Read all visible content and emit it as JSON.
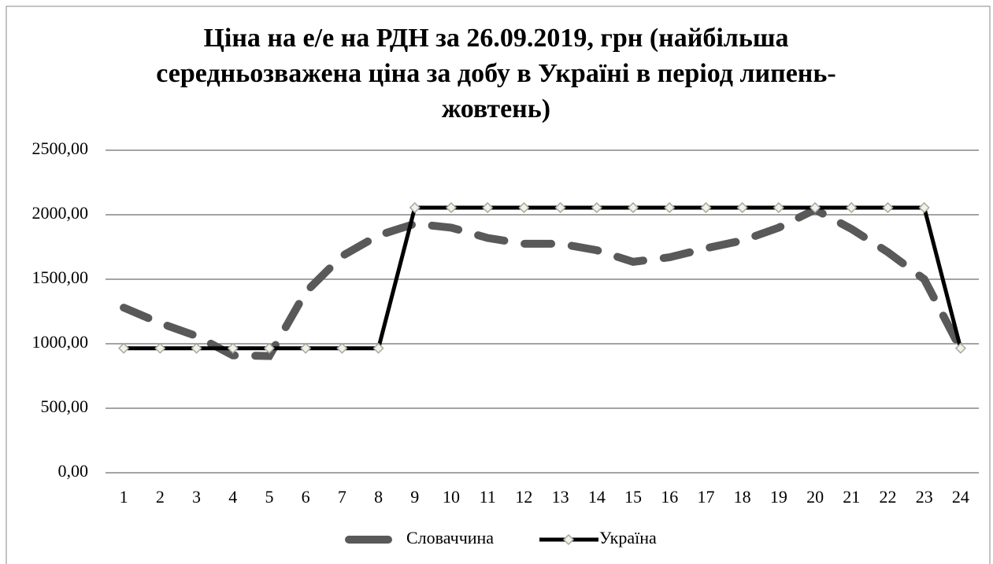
{
  "chart_data": {
    "type": "line",
    "title": "Ціна на е/е на РДН за 26.09.2019, грн (найбільша середньозважена ціна за добу в Україні в період липень-жовтень)",
    "categories": [
      "1",
      "2",
      "3",
      "4",
      "5",
      "6",
      "7",
      "8",
      "9",
      "10",
      "11",
      "12",
      "13",
      "14",
      "15",
      "16",
      "17",
      "18",
      "19",
      "20",
      "21",
      "22",
      "23",
      "24"
    ],
    "series": [
      {
        "name": "Словаччина",
        "color": "#595959",
        "dashed": true,
        "values": [
          1280,
          1160,
          1060,
          910,
          905,
          1400,
          1680,
          1840,
          1930,
          1900,
          1820,
          1775,
          1775,
          1725,
          1635,
          1670,
          1740,
          1800,
          1900,
          2040,
          1890,
          1710,
          1500,
          960
        ]
      },
      {
        "name": "Україна",
        "color": "#000000",
        "markers": true,
        "values": [
          965,
          965,
          965,
          965,
          965,
          965,
          965,
          965,
          2055,
          2055,
          2055,
          2055,
          2055,
          2055,
          2055,
          2055,
          2055,
          2055,
          2055,
          2055,
          2055,
          2055,
          2055,
          965
        ]
      }
    ],
    "ylim": [
      0,
      2500
    ],
    "yticks": [
      {
        "value": 0,
        "label": "0,00"
      },
      {
        "value": 500,
        "label": "500,00"
      },
      {
        "value": 1000,
        "label": "1000,00"
      },
      {
        "value": 1500,
        "label": "1500,00"
      },
      {
        "value": 2000,
        "label": "2000,00"
      },
      {
        "value": 2500,
        "label": "2500,00"
      }
    ],
    "grid": true,
    "legend": "bottom"
  }
}
